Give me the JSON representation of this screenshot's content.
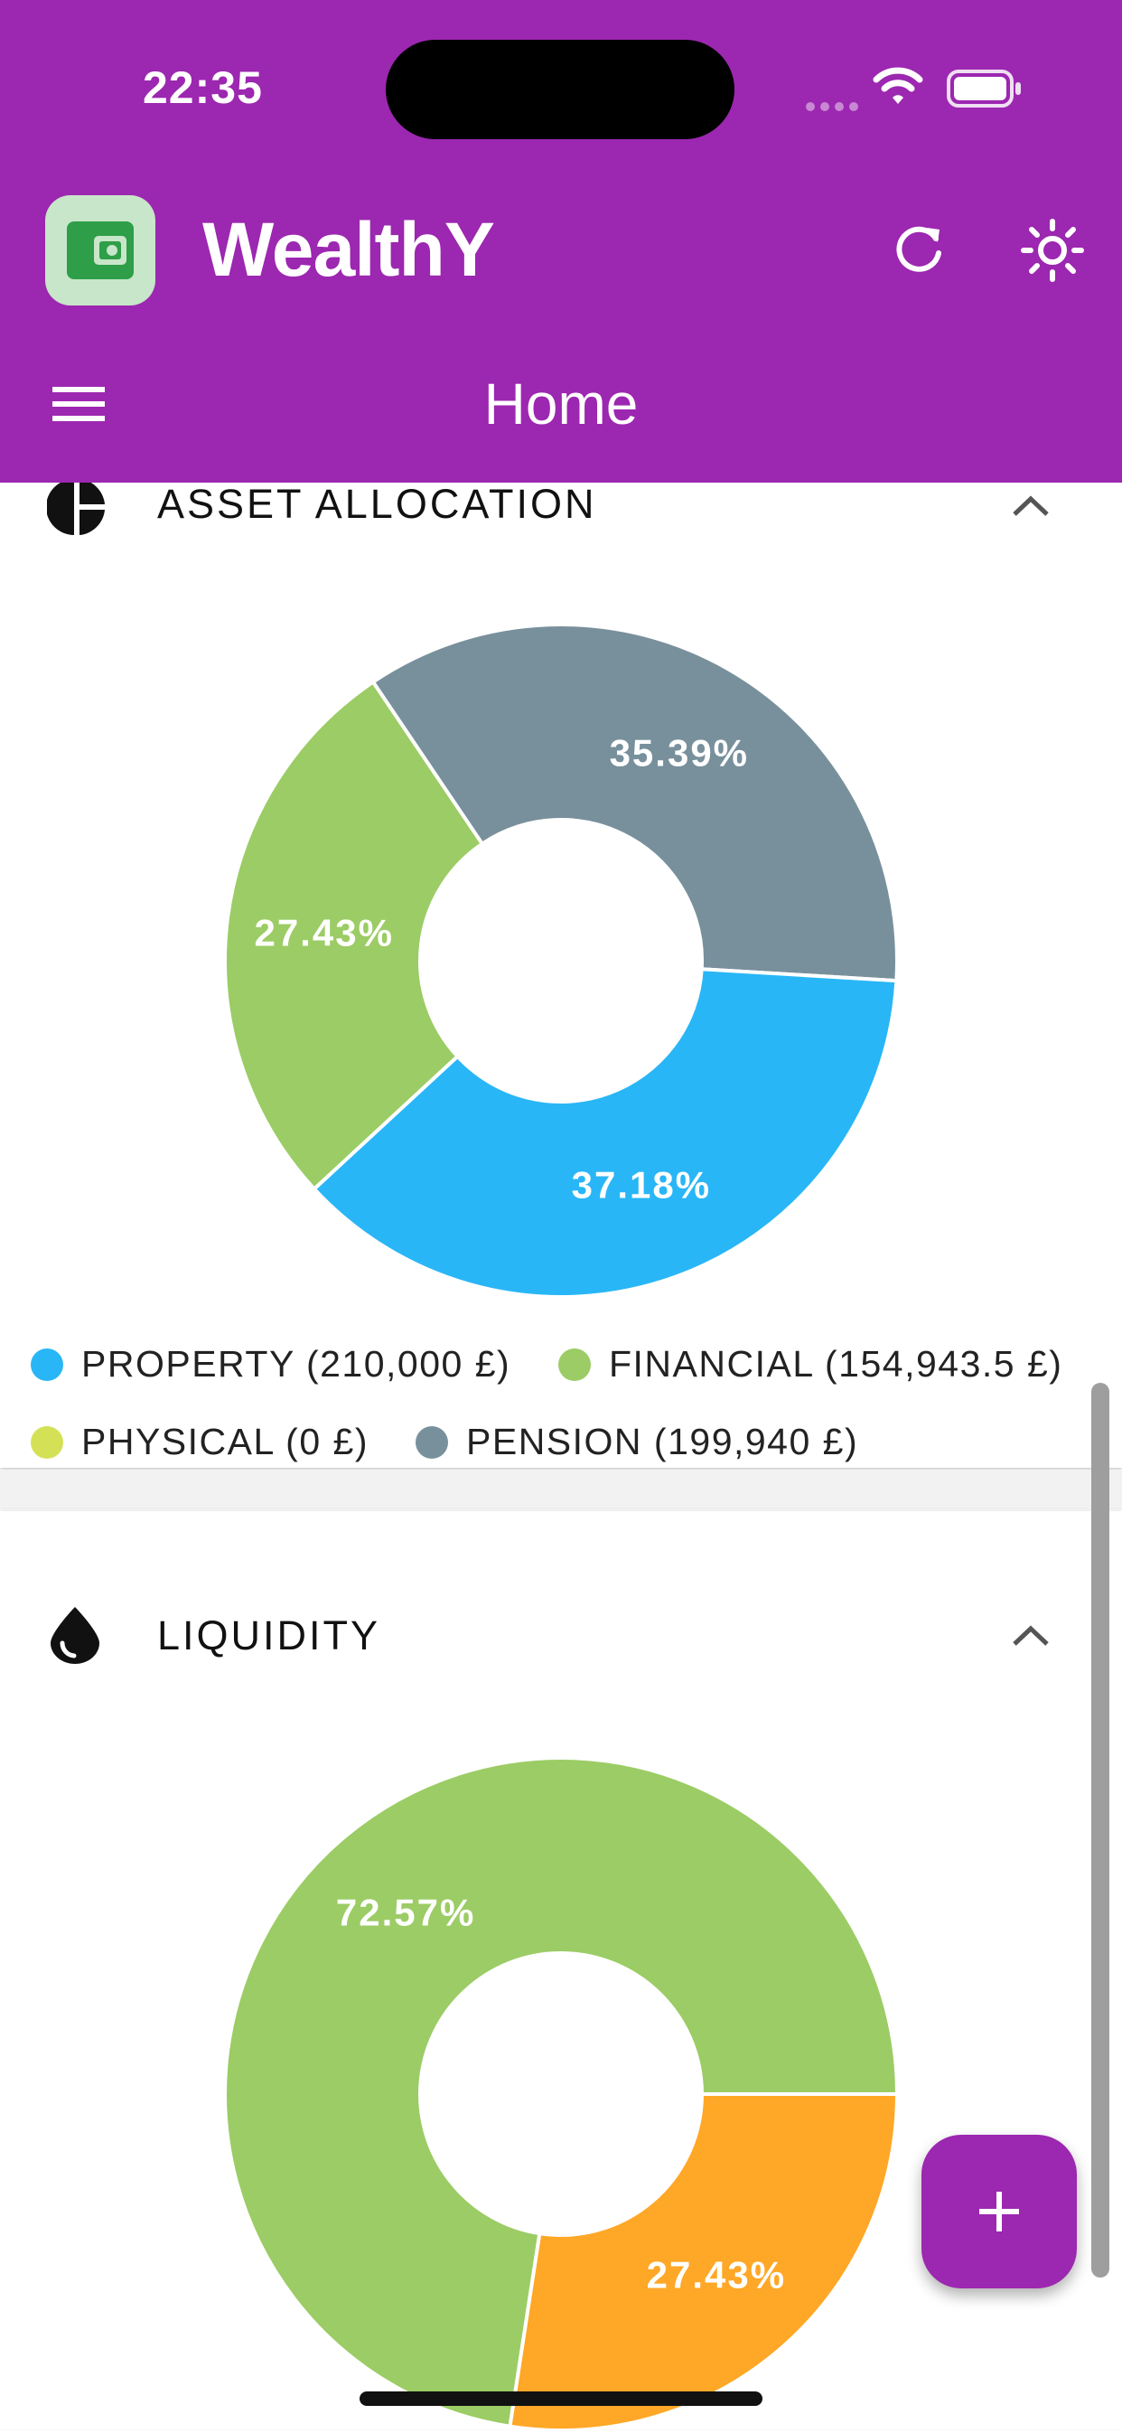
{
  "status_bar": {
    "time": "22:35"
  },
  "app": {
    "title": "WealthY",
    "icon": "wallet-icon"
  },
  "header": {
    "page_title": "Home",
    "actions": [
      "refresh-icon",
      "sun-icon"
    ],
    "menu": "menu-icon"
  },
  "sections": [
    {
      "title": "ASSET ALLOCATION",
      "icon": "pie-chart-icon",
      "legend": [
        {
          "label": "PROPERTY (210,000 £)",
          "color": "#29b6f6"
        },
        {
          "label": "FINANCIAL (154,943.5 £)",
          "color": "#9ccc65"
        },
        {
          "label": "PHYSICAL (0 £)",
          "color": "#d4e157"
        },
        {
          "label": "PENSION (199,940 £)",
          "color": "#78909c"
        }
      ]
    },
    {
      "title": "LIQUIDITY",
      "icon": "drop-icon"
    }
  ],
  "chart_data": [
    {
      "type": "pie",
      "donut": true,
      "slices": [
        {
          "value": 35.39,
          "label": "35.39%",
          "color": "#78909c"
        },
        {
          "value": 37.18,
          "label": "37.18%",
          "color": "#29b6f6"
        },
        {
          "value": 27.43,
          "label": "27.43%",
          "color": "#9ccc65"
        }
      ]
    },
    {
      "type": "pie",
      "donut": true,
      "slices": [
        {
          "value": 27.43,
          "label": "27.43%",
          "color": "#ffa726"
        },
        {
          "value": 72.57,
          "label": "72.57%",
          "color": "#9ccc65"
        }
      ]
    }
  ],
  "fab": {
    "label": "+"
  }
}
